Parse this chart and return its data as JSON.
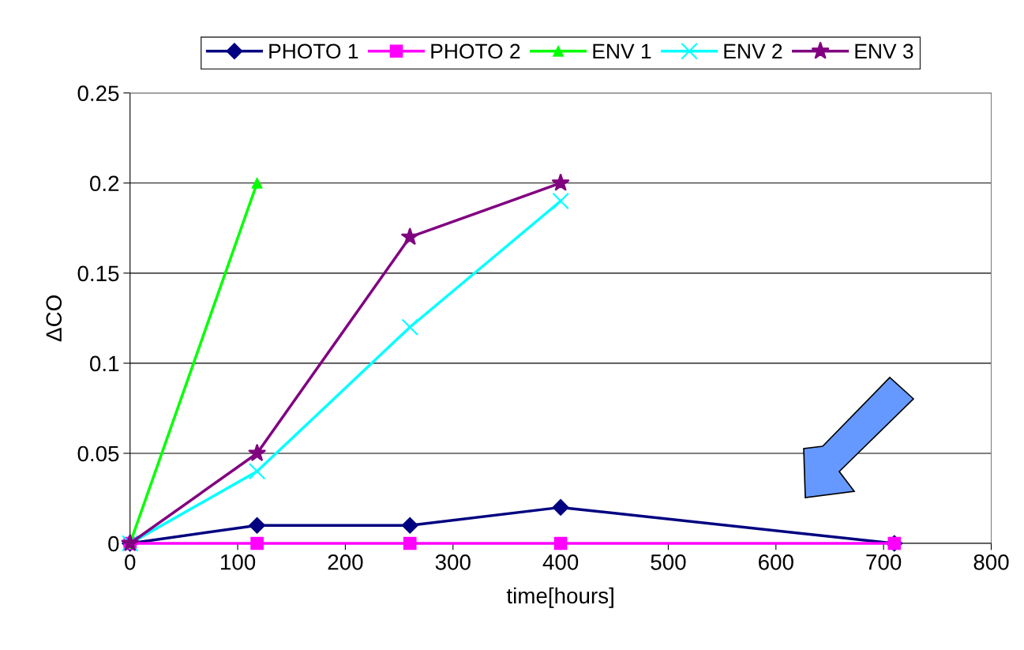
{
  "chart_data": {
    "type": "line",
    "xlabel": "time[hours]",
    "ylabel": "ΔCO",
    "xlim": [
      0,
      800
    ],
    "xticks": [
      0,
      100,
      200,
      300,
      400,
      500,
      600,
      700,
      800
    ],
    "ylim": [
      0,
      0.25
    ],
    "yticks": [
      0,
      0.05,
      0.1,
      0.15,
      0.2,
      0.25
    ],
    "grid": "y",
    "legend": "top",
    "series": [
      {
        "name": "PHOTO 1",
        "color": "#000080",
        "marker": "diamond",
        "x": [
          0,
          118,
          260,
          400,
          710
        ],
        "values": [
          0,
          0.01,
          0.01,
          0.02,
          0
        ]
      },
      {
        "name": "PHOTO 2",
        "color": "#ff00ff",
        "marker": "square",
        "x": [
          0,
          118,
          260,
          400,
          710
        ],
        "values": [
          0,
          0,
          0,
          0,
          0
        ]
      },
      {
        "name": "ENV 1",
        "color": "#00ff00",
        "marker": "triangle",
        "x": [
          0,
          118
        ],
        "values": [
          0,
          0.2
        ]
      },
      {
        "name": "ENV 2",
        "color": "#00ffff",
        "marker": "cross",
        "x": [
          0,
          118,
          260,
          400
        ],
        "values": [
          0,
          0.04,
          0.12,
          0.19
        ]
      },
      {
        "name": "ENV 3",
        "color": "#800080",
        "marker": "star",
        "x": [
          0,
          118,
          260,
          400
        ],
        "values": [
          0,
          0.05,
          0.17,
          0.2
        ]
      }
    ]
  }
}
